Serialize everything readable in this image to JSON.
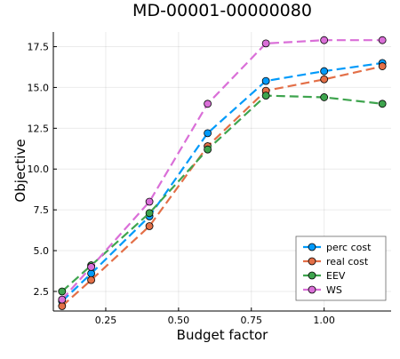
{
  "chart_data": {
    "type": "line",
    "title": "MD-00001-00000080",
    "xlabel": "Budget factor",
    "ylabel": "Objective",
    "xlim": [
      0.07,
      1.23
    ],
    "ylim": [
      1.3,
      18.4
    ],
    "xticks": [
      0.25,
      0.5,
      0.75,
      1.0
    ],
    "xtick_labels": [
      "0.25",
      "0.50",
      "0.75",
      "1.00"
    ],
    "yticks": [
      2.5,
      5.0,
      7.5,
      10.0,
      12.5,
      15.0,
      17.5
    ],
    "ytick_labels": [
      "2.5",
      "5.0",
      "7.5",
      "10.0",
      "12.5",
      "15.0",
      "17.5"
    ],
    "grid": true,
    "legend_position": "bottom-right",
    "x": [
      0.1,
      0.2,
      0.4,
      0.6,
      0.8,
      1.0,
      1.2
    ],
    "series": [
      {
        "name": "perc cost",
        "color": "#009AFA",
        "values": [
          1.9,
          3.6,
          7.1,
          12.2,
          15.4,
          16.0,
          16.5
        ]
      },
      {
        "name": "real cost",
        "color": "#E36F47",
        "values": [
          1.6,
          3.2,
          6.5,
          11.4,
          14.8,
          15.5,
          16.3
        ]
      },
      {
        "name": "EEV",
        "color": "#3EA44E",
        "values": [
          2.5,
          4.1,
          7.3,
          11.2,
          14.5,
          14.4,
          14.0
        ]
      },
      {
        "name": "WS",
        "color": "#DA6FD8",
        "values": [
          2.0,
          4.0,
          8.0,
          14.0,
          17.7,
          17.9,
          17.9
        ]
      }
    ]
  }
}
